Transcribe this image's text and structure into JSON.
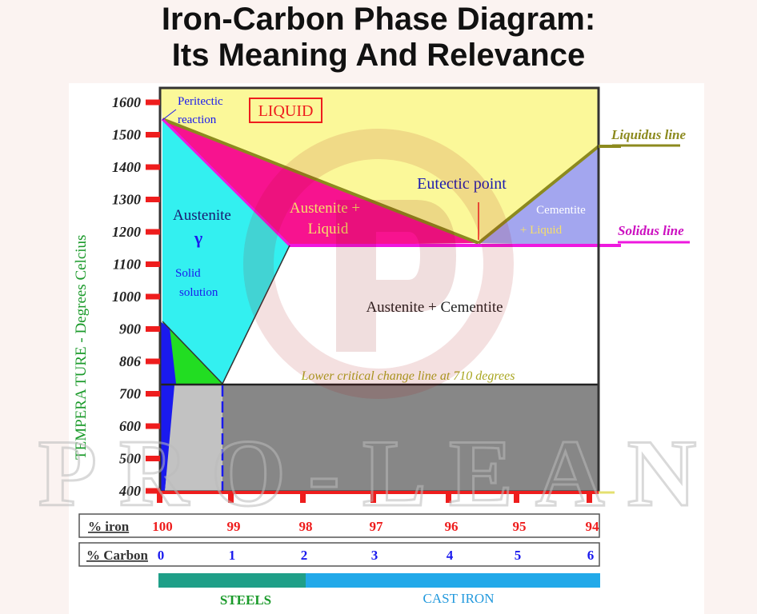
{
  "page": {
    "title_line1": "Iron-Carbon Phase Diagram:",
    "title_line2": "Its Meaning And Relevance"
  },
  "diagram": {
    "y_axis_label": "TEMPERA TURE - Degrees Celcius",
    "y_ticks": [
      "1600",
      "1500",
      "1400",
      "1300",
      "1200",
      "1100",
      "1000",
      "900",
      "806",
      "700",
      "600",
      "500",
      "400"
    ],
    "regions": {
      "peritectic": [
        "Peritectic",
        "reaction"
      ],
      "liquid": "LIQUID",
      "austenite": "Austenite",
      "gamma": "γ",
      "solid_solution": [
        "Solid",
        "solution"
      ],
      "austenite_liquid": [
        "Austenite +",
        "Liquid"
      ],
      "eutectic_point": "Eutectic point",
      "cementite_liquid": [
        "Cementite",
        "+ Liquid"
      ],
      "austenite_cementite": "Austenite + Cementite",
      "lower_critical": "Lower critical change line at 710 degrees"
    },
    "legend_lines": {
      "liquidus": "Liquidus line",
      "solidus": "Solidus line"
    },
    "iron_row": {
      "label": "% iron",
      "values": [
        "100",
        "99",
        "98",
        "97",
        "96",
        "95",
        "94"
      ]
    },
    "carbon_row": {
      "label": "% Carbon",
      "values": [
        "0",
        "1",
        "2",
        "3",
        "4",
        "5",
        "6"
      ]
    },
    "bands": {
      "steels": "STEELS",
      "cast_iron": "CAST IRON"
    },
    "colors": {
      "liquid": "#fbf899",
      "austenite": "#33f0f0",
      "austenite_liquid": "#f7138f",
      "cementite_liquid": "#a3a6ef",
      "green": "#22dd22",
      "blue": "#1a1aee",
      "light_gray": "#c2c2c2",
      "dark_gray": "#878787",
      "liquidus": "#8c8a1e",
      "solidus": "#ee18df",
      "tick_red": "#ee1d1d",
      "steels_band": "#1f9f88",
      "cast_iron_band": "#22a9e9"
    }
  },
  "watermark": "PRO-LEAN"
}
